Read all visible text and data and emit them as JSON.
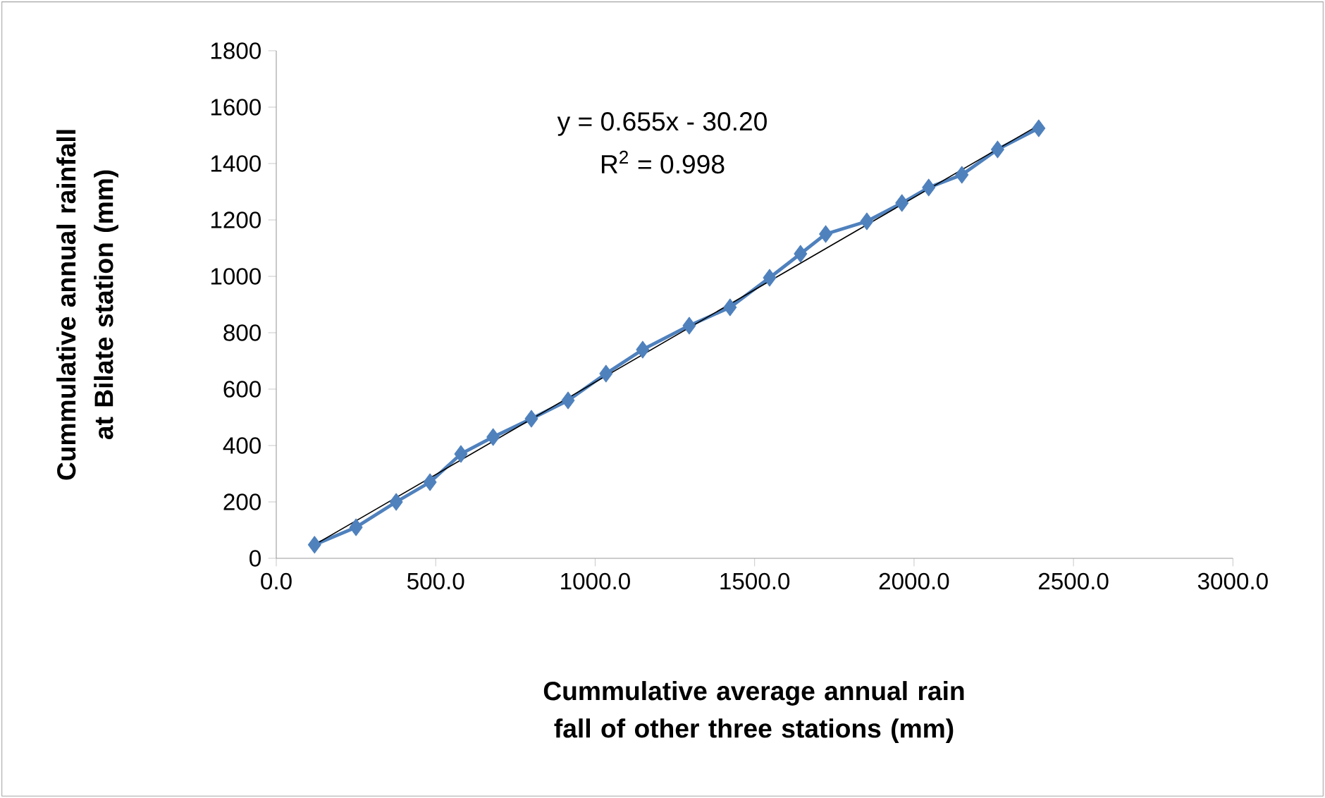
{
  "chart_data": {
    "type": "line",
    "xlabel": "Cummulative average annual rain fall of other three stations (mm)",
    "ylabel": "Cummulative annual rainfall at Bilate station (mm)",
    "annotations": [
      "y = 0.655x - 30.20",
      "R$^{2}$ = 0.998"
    ],
    "series": [
      {
        "color": "#4f81bd",
        "x": [
          120,
          250,
          376,
          482,
          579,
          680,
          800,
          915,
          1034,
          1149,
          1295,
          1423,
          1547,
          1644,
          1723,
          1852,
          1962,
          2046,
          2150,
          2262,
          2391
        ],
        "values": [
          48,
          110,
          200,
          270,
          370,
          430,
          495,
          560,
          655,
          740,
          825,
          890,
          995,
          1080,
          1150,
          1195,
          1260,
          1315,
          1360,
          1450,
          1525
        ]
      },
      {
        "type": "line",
        "color": "#000000",
        "marker": "none",
        "x": [
          120,
          2391
        ],
        "values": [
          48,
          1536
        ]
      }
    ],
    "xlim": [
      0,
      3000
    ],
    "ylim": [
      0,
      1800
    ],
    "xticks": [
      {
        "value": 0,
        "label": "0.0"
      },
      {
        "value": 500,
        "label": "500.0"
      },
      {
        "value": 1000,
        "label": "1000.0"
      },
      {
        "value": 1500,
        "label": "1500.0"
      },
      {
        "value": 2000,
        "label": "2000.0"
      },
      {
        "value": 2500,
        "label": "2500.0"
      },
      {
        "value": 3000,
        "label": "3000.0"
      }
    ],
    "yticks": [
      0,
      200,
      400,
      600,
      800,
      1000,
      1200,
      1400,
      1600,
      1800
    ],
    "grid": false,
    "marker": "diamond",
    "line_style": "solid"
  }
}
